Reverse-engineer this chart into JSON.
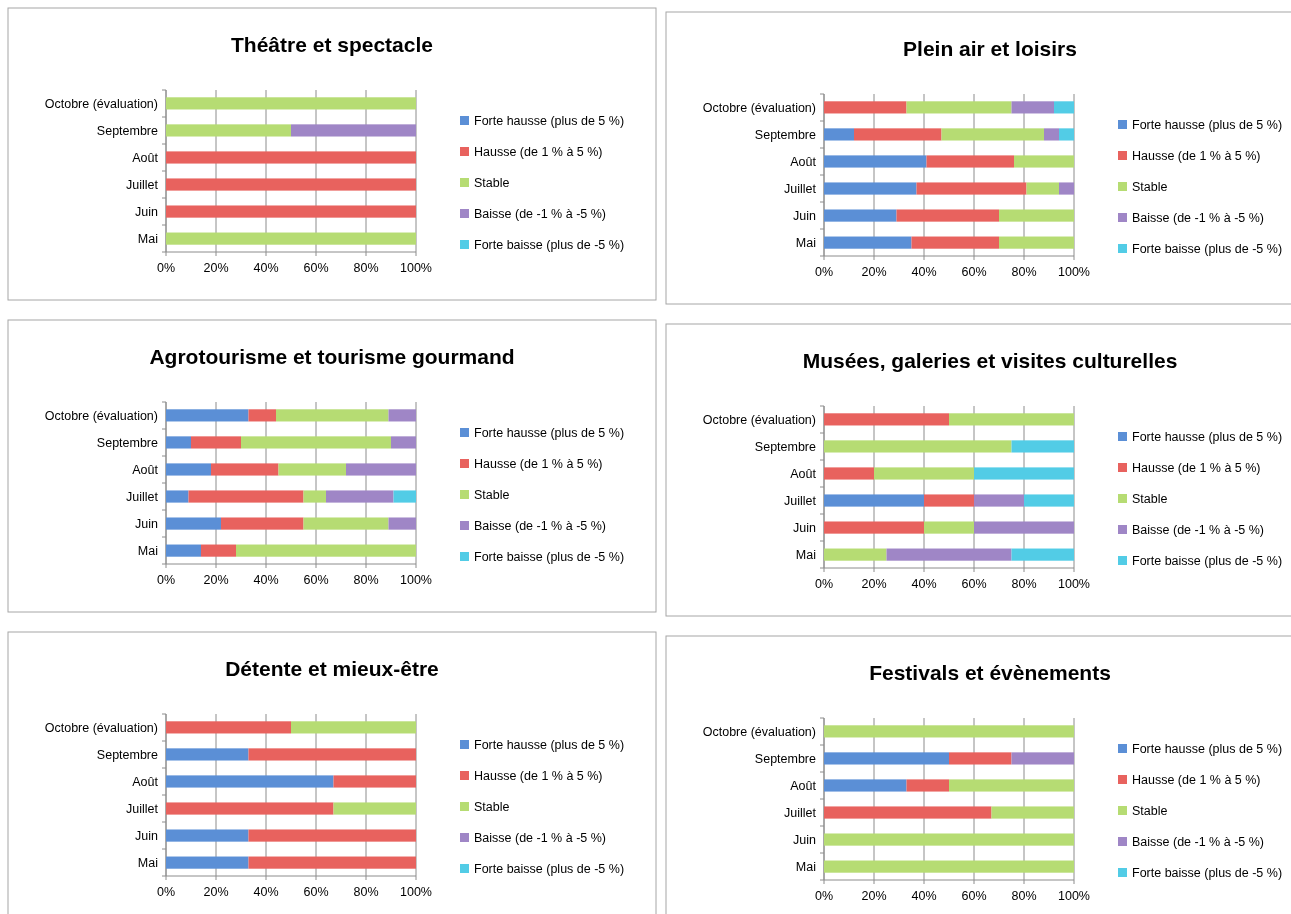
{
  "chart_data": [
    {
      "type": "bar",
      "orientation": "horizontal",
      "stacked": true,
      "title": "Théâtre et spectacle",
      "categories": [
        "Octobre (évaluation)",
        "Septembre",
        "Août",
        "Juillet",
        "Juin",
        "Mai"
      ],
      "series": [
        {
          "name": "Forte hausse (plus de 5 %)",
          "color": "#5b8fd6",
          "values": [
            0,
            0,
            0,
            0,
            0,
            0
          ]
        },
        {
          "name": "Hausse (de 1 % à 5 %)",
          "color": "#e8625e",
          "values": [
            0,
            0,
            100,
            100,
            100,
            0
          ]
        },
        {
          "name": "Stable",
          "color": "#b6dc73",
          "values": [
            100,
            50,
            0,
            0,
            0,
            100
          ]
        },
        {
          "name": "Baisse (de -1 % à -5 %)",
          "color": "#9f86c6",
          "values": [
            0,
            50,
            0,
            0,
            0,
            0
          ]
        },
        {
          "name": "Forte baisse (plus de -5 %)",
          "color": "#52cce6",
          "values": [
            0,
            0,
            0,
            0,
            0,
            0
          ]
        }
      ],
      "xlim": [
        0,
        100
      ],
      "xticks": [
        {
          "value": 0,
          "label": "0%"
        },
        {
          "value": 20,
          "label": "20%"
        },
        {
          "value": 40,
          "label": "40%"
        },
        {
          "value": 60,
          "label": "60%"
        },
        {
          "value": 80,
          "label": "80%"
        },
        {
          "value": 100,
          "label": "100%"
        }
      ],
      "grid": "x",
      "legend": "right"
    },
    {
      "type": "bar",
      "orientation": "horizontal",
      "stacked": true,
      "title": "Plein air et loisirs",
      "categories": [
        "Octobre (évaluation)",
        "Septembre",
        "Août",
        "Juillet",
        "Juin",
        "Mai"
      ],
      "series": [
        {
          "name": "Forte hausse (plus de 5 %)",
          "color": "#5b8fd6",
          "values": [
            0,
            12,
            41,
            37,
            29,
            35
          ]
        },
        {
          "name": "Hausse (de 1 % à 5 %)",
          "color": "#e8625e",
          "values": [
            33,
            35,
            35,
            44,
            41,
            35
          ]
        },
        {
          "name": "Stable",
          "color": "#b6dc73",
          "values": [
            42,
            41,
            24,
            13,
            30,
            30
          ]
        },
        {
          "name": "Baisse (de -1 % à -5 %)",
          "color": "#9f86c6",
          "values": [
            17,
            6,
            0,
            6,
            0,
            0
          ]
        },
        {
          "name": "Forte baisse (plus de -5 %)",
          "color": "#52cce6",
          "values": [
            8,
            6,
            0,
            0,
            0,
            0
          ]
        }
      ],
      "xlim": [
        0,
        100
      ],
      "xticks": [
        {
          "value": 0,
          "label": "0%"
        },
        {
          "value": 20,
          "label": "20%"
        },
        {
          "value": 40,
          "label": "40%"
        },
        {
          "value": 60,
          "label": "60%"
        },
        {
          "value": 80,
          "label": "80%"
        },
        {
          "value": 100,
          "label": "100%"
        }
      ],
      "grid": "x",
      "legend": "right"
    },
    {
      "type": "bar",
      "orientation": "horizontal",
      "stacked": true,
      "title": "Agrotourisme et tourisme gourmand",
      "categories": [
        "Octobre (évaluation)",
        "Septembre",
        "Août",
        "Juillet",
        "Juin",
        "Mai"
      ],
      "series": [
        {
          "name": "Forte hausse (plus de 5 %)",
          "color": "#5b8fd6",
          "values": [
            33,
            10,
            18,
            9,
            22,
            14
          ]
        },
        {
          "name": "Hausse (de 1 % à 5 %)",
          "color": "#e8625e",
          "values": [
            11,
            20,
            27,
            46,
            33,
            14
          ]
        },
        {
          "name": "Stable",
          "color": "#b6dc73",
          "values": [
            45,
            60,
            27,
            9,
            34,
            72
          ]
        },
        {
          "name": "Baisse (de -1 % à -5 %)",
          "color": "#9f86c6",
          "values": [
            11,
            10,
            28,
            27,
            11,
            0
          ]
        },
        {
          "name": "Forte baisse (plus de -5 %)",
          "color": "#52cce6",
          "values": [
            0,
            0,
            0,
            9,
            0,
            0
          ]
        }
      ],
      "xlim": [
        0,
        100
      ],
      "xticks": [
        {
          "value": 0,
          "label": "0%"
        },
        {
          "value": 20,
          "label": "20%"
        },
        {
          "value": 40,
          "label": "40%"
        },
        {
          "value": 60,
          "label": "60%"
        },
        {
          "value": 80,
          "label": "80%"
        },
        {
          "value": 100,
          "label": "100%"
        }
      ],
      "grid": "x",
      "legend": "right"
    },
    {
      "type": "bar",
      "orientation": "horizontal",
      "stacked": true,
      "title": "Musées, galeries et visites culturelles",
      "categories": [
        "Octobre (évaluation)",
        "Septembre",
        "Août",
        "Juillet",
        "Juin",
        "Mai"
      ],
      "series": [
        {
          "name": "Forte hausse (plus de 5 %)",
          "color": "#5b8fd6",
          "values": [
            0,
            0,
            0,
            40,
            0,
            0
          ]
        },
        {
          "name": "Hausse (de 1 % à 5 %)",
          "color": "#e8625e",
          "values": [
            50,
            0,
            20,
            20,
            40,
            0
          ]
        },
        {
          "name": "Stable",
          "color": "#b6dc73",
          "values": [
            50,
            75,
            40,
            0,
            20,
            25
          ]
        },
        {
          "name": "Baisse (de -1 % à -5 %)",
          "color": "#9f86c6",
          "values": [
            0,
            0,
            0,
            20,
            40,
            50
          ]
        },
        {
          "name": "Forte baisse (plus de -5 %)",
          "color": "#52cce6",
          "values": [
            0,
            25,
            40,
            20,
            0,
            25
          ]
        }
      ],
      "xlim": [
        0,
        100
      ],
      "xticks": [
        {
          "value": 0,
          "label": "0%"
        },
        {
          "value": 20,
          "label": "20%"
        },
        {
          "value": 40,
          "label": "40%"
        },
        {
          "value": 60,
          "label": "60%"
        },
        {
          "value": 80,
          "label": "80%"
        },
        {
          "value": 100,
          "label": "100%"
        }
      ],
      "grid": "x",
      "legend": "right"
    },
    {
      "type": "bar",
      "orientation": "horizontal",
      "stacked": true,
      "title": "Détente et mieux-être",
      "categories": [
        "Octobre (évaluation)",
        "Septembre",
        "Août",
        "Juillet",
        "Juin",
        "Mai"
      ],
      "series": [
        {
          "name": "Forte hausse (plus de 5 %)",
          "color": "#5b8fd6",
          "values": [
            0,
            33,
            67,
            0,
            33,
            33
          ]
        },
        {
          "name": "Hausse (de 1 % à 5 %)",
          "color": "#e8625e",
          "values": [
            50,
            67,
            33,
            67,
            67,
            67
          ]
        },
        {
          "name": "Stable",
          "color": "#b6dc73",
          "values": [
            50,
            0,
            0,
            33,
            0,
            0
          ]
        },
        {
          "name": "Baisse (de -1 % à -5 %)",
          "color": "#9f86c6",
          "values": [
            0,
            0,
            0,
            0,
            0,
            0
          ]
        },
        {
          "name": "Forte baisse (plus de -5 %)",
          "color": "#52cce6",
          "values": [
            0,
            0,
            0,
            0,
            0,
            0
          ]
        }
      ],
      "xlim": [
        0,
        100
      ],
      "xticks": [
        {
          "value": 0,
          "label": "0%"
        },
        {
          "value": 20,
          "label": "20%"
        },
        {
          "value": 40,
          "label": "40%"
        },
        {
          "value": 60,
          "label": "60%"
        },
        {
          "value": 80,
          "label": "80%"
        },
        {
          "value": 100,
          "label": "100%"
        }
      ],
      "grid": "x",
      "legend": "right"
    },
    {
      "type": "bar",
      "orientation": "horizontal",
      "stacked": true,
      "title": "Festivals et évènements",
      "categories": [
        "Octobre (évaluation)",
        "Septembre",
        "Août",
        "Juillet",
        "Juin",
        "Mai"
      ],
      "series": [
        {
          "name": "Forte hausse (plus de 5 %)",
          "color": "#5b8fd6",
          "values": [
            0,
            50,
            33,
            0,
            0,
            0
          ]
        },
        {
          "name": "Hausse (de 1 % à 5 %)",
          "color": "#e8625e",
          "values": [
            0,
            25,
            17,
            67,
            0,
            0
          ]
        },
        {
          "name": "Stable",
          "color": "#b6dc73",
          "values": [
            100,
            0,
            50,
            33,
            100,
            100
          ]
        },
        {
          "name": "Baisse (de -1 % à -5 %)",
          "color": "#9f86c6",
          "values": [
            0,
            25,
            0,
            0,
            0,
            0
          ]
        },
        {
          "name": "Forte baisse (plus de -5 %)",
          "color": "#52cce6",
          "values": [
            0,
            0,
            0,
            0,
            0,
            0
          ]
        }
      ],
      "xlim": [
        0,
        100
      ],
      "xticks": [
        {
          "value": 0,
          "label": "0%"
        },
        {
          "value": 20,
          "label": "20%"
        },
        {
          "value": 40,
          "label": "40%"
        },
        {
          "value": 60,
          "label": "60%"
        },
        {
          "value": 80,
          "label": "80%"
        },
        {
          "value": 100,
          "label": "100%"
        }
      ],
      "grid": "x",
      "legend": "right"
    }
  ]
}
